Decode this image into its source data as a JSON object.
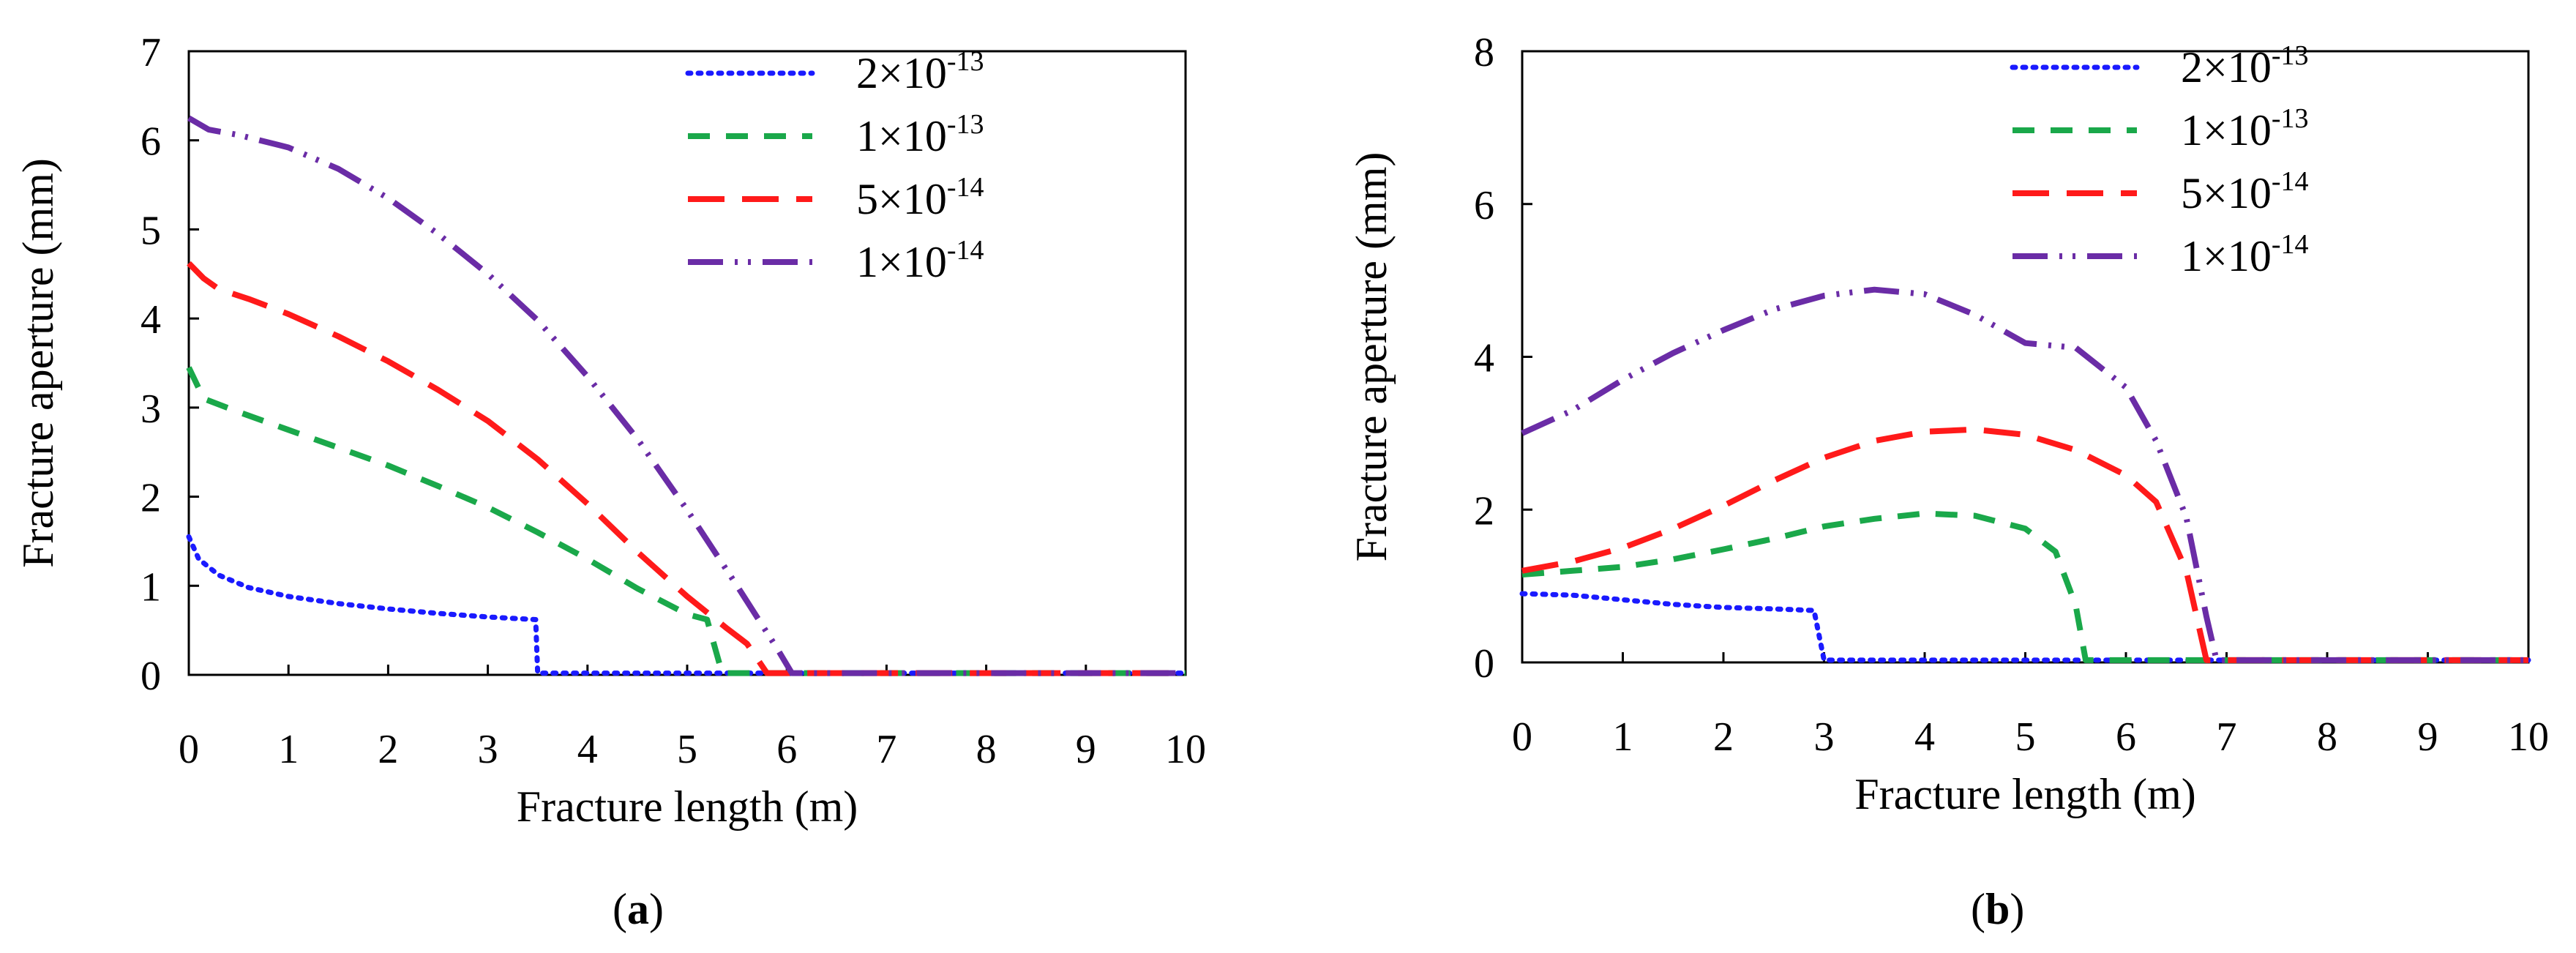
{
  "colors": {
    "axis": "#000000",
    "s1": "#1a1aff",
    "s2": "#1aa84a",
    "s3": "#ff1a1a",
    "s4": "#6a2ca6"
  },
  "chart_data": [
    {
      "type": "line",
      "panel_label": "a",
      "panel_open": "(",
      "panel_close": ")",
      "xlabel": "Fracture length (m)",
      "ylabel": "Fracture aperture (mm)",
      "xlim": [
        0,
        10
      ],
      "ylim": [
        0,
        7
      ],
      "xticks": [
        0,
        1,
        2,
        3,
        4,
        5,
        6,
        7,
        8,
        9,
        10
      ],
      "yticks": [
        0,
        1,
        2,
        3,
        4,
        5,
        6,
        7
      ],
      "legend_position": "top-right",
      "series": [
        {
          "name": "2×10-13",
          "mantissa": "2",
          "times": "×",
          "base": "10",
          "exponent": "-13",
          "style": "dotted",
          "color_key": "s1",
          "points": [
            [
              0,
              1.55
            ],
            [
              0.1,
              1.3
            ],
            [
              0.3,
              1.12
            ],
            [
              0.6,
              0.98
            ],
            [
              1,
              0.88
            ],
            [
              1.5,
              0.8
            ],
            [
              2,
              0.74
            ],
            [
              2.5,
              0.69
            ],
            [
              3,
              0.65
            ],
            [
              3.48,
              0.62
            ],
            [
              3.5,
              0.02
            ],
            [
              10,
              0.02
            ]
          ]
        },
        {
          "name": "1×10-13",
          "mantissa": "1",
          "times": "×",
          "base": "10",
          "exponent": "-13",
          "style": "dashed",
          "color_key": "s2",
          "points": [
            [
              0,
              3.45
            ],
            [
              0.15,
              3.1
            ],
            [
              0.5,
              2.95
            ],
            [
              1,
              2.75
            ],
            [
              1.5,
              2.55
            ],
            [
              2,
              2.35
            ],
            [
              2.5,
              2.12
            ],
            [
              3,
              1.88
            ],
            [
              3.5,
              1.6
            ],
            [
              4,
              1.3
            ],
            [
              4.5,
              0.97
            ],
            [
              5,
              0.68
            ],
            [
              5.2,
              0.62
            ],
            [
              5.35,
              0.02
            ],
            [
              10,
              0.02
            ]
          ]
        },
        {
          "name": "5×10-14",
          "mantissa": "5",
          "times": "×",
          "base": "10",
          "exponent": "-14",
          "style": "longdash",
          "color_key": "s3",
          "points": [
            [
              0,
              4.62
            ],
            [
              0.15,
              4.45
            ],
            [
              0.3,
              4.33
            ],
            [
              0.6,
              4.22
            ],
            [
              1,
              4.05
            ],
            [
              1.5,
              3.8
            ],
            [
              2,
              3.52
            ],
            [
              2.5,
              3.2
            ],
            [
              3,
              2.85
            ],
            [
              3.5,
              2.42
            ],
            [
              4,
              1.92
            ],
            [
              4.5,
              1.38
            ],
            [
              5,
              0.88
            ],
            [
              5.4,
              0.52
            ],
            [
              5.6,
              0.35
            ],
            [
              5.8,
              0.02
            ],
            [
              10,
              0.02
            ]
          ]
        },
        {
          "name": "1×10-14",
          "mantissa": "1",
          "times": "×",
          "base": "10",
          "exponent": "-14",
          "style": "dashdotdot",
          "color_key": "s4",
          "points": [
            [
              0,
              6.25
            ],
            [
              0.2,
              6.12
            ],
            [
              0.5,
              6.06
            ],
            [
              1,
              5.92
            ],
            [
              1.5,
              5.68
            ],
            [
              2,
              5.35
            ],
            [
              2.5,
              4.95
            ],
            [
              3,
              4.5
            ],
            [
              3.5,
              3.98
            ],
            [
              4,
              3.35
            ],
            [
              4.5,
              2.65
            ],
            [
              5,
              1.85
            ],
            [
              5.5,
              1.0
            ],
            [
              5.9,
              0.3
            ],
            [
              6.05,
              0.02
            ],
            [
              10,
              0.02
            ]
          ]
        }
      ]
    },
    {
      "type": "line",
      "panel_label": "b",
      "panel_open": "(",
      "panel_close": ")",
      "xlabel": "Fracture length (m)",
      "ylabel": "Fracture aperture (mm)",
      "xlim": [
        0,
        10
      ],
      "ylim": [
        0,
        8
      ],
      "xticks": [
        0,
        1,
        2,
        3,
        4,
        5,
        6,
        7,
        8,
        9,
        10
      ],
      "yticks": [
        0,
        2,
        4,
        6,
        8
      ],
      "legend_position": "top-right",
      "series": [
        {
          "name": "2×10-13",
          "mantissa": "2",
          "times": "×",
          "base": "10",
          "exponent": "-13",
          "style": "dotted",
          "color_key": "s1",
          "points": [
            [
              0,
              0.9
            ],
            [
              0.5,
              0.88
            ],
            [
              1,
              0.82
            ],
            [
              1.5,
              0.76
            ],
            [
              2,
              0.72
            ],
            [
              2.5,
              0.7
            ],
            [
              2.9,
              0.68
            ],
            [
              3,
              0.03
            ],
            [
              10,
              0.03
            ]
          ]
        },
        {
          "name": "1×10-13",
          "mantissa": "1",
          "times": "×",
          "base": "10",
          "exponent": "-13",
          "style": "dashed",
          "color_key": "s2",
          "points": [
            [
              0,
              1.15
            ],
            [
              0.5,
              1.2
            ],
            [
              1,
              1.25
            ],
            [
              1.5,
              1.35
            ],
            [
              2,
              1.48
            ],
            [
              2.5,
              1.62
            ],
            [
              3,
              1.78
            ],
            [
              3.5,
              1.88
            ],
            [
              4,
              1.95
            ],
            [
              4.5,
              1.92
            ],
            [
              5,
              1.75
            ],
            [
              5.3,
              1.45
            ],
            [
              5.5,
              0.75
            ],
            [
              5.6,
              0.03
            ],
            [
              10,
              0.03
            ]
          ]
        },
        {
          "name": "5×10-14",
          "mantissa": "5",
          "times": "×",
          "base": "10",
          "exponent": "-14",
          "style": "longdash",
          "color_key": "s3",
          "points": [
            [
              0,
              1.2
            ],
            [
              0.5,
              1.32
            ],
            [
              1,
              1.5
            ],
            [
              1.5,
              1.75
            ],
            [
              2,
              2.05
            ],
            [
              2.5,
              2.38
            ],
            [
              3,
              2.68
            ],
            [
              3.5,
              2.9
            ],
            [
              4,
              3.02
            ],
            [
              4.5,
              3.05
            ],
            [
              5,
              2.98
            ],
            [
              5.5,
              2.78
            ],
            [
              6,
              2.45
            ],
            [
              6.3,
              2.1
            ],
            [
              6.6,
              1.2
            ],
            [
              6.8,
              0.03
            ],
            [
              10,
              0.03
            ]
          ]
        },
        {
          "name": "1×10-14",
          "mantissa": "1",
          "times": "×",
          "base": "10",
          "exponent": "-14",
          "style": "dashdotdot",
          "color_key": "s4",
          "points": [
            [
              0,
              3.0
            ],
            [
              0.5,
              3.3
            ],
            [
              1,
              3.7
            ],
            [
              1.5,
              4.05
            ],
            [
              2,
              4.35
            ],
            [
              2.5,
              4.62
            ],
            [
              3,
              4.8
            ],
            [
              3.5,
              4.88
            ],
            [
              4,
              4.82
            ],
            [
              4.5,
              4.55
            ],
            [
              5,
              4.18
            ],
            [
              5.5,
              4.12
            ],
            [
              6,
              3.6
            ],
            [
              6.3,
              2.9
            ],
            [
              6.6,
              1.9
            ],
            [
              6.8,
              0.6
            ],
            [
              6.9,
              0.03
            ],
            [
              10,
              0.03
            ]
          ]
        }
      ]
    }
  ]
}
